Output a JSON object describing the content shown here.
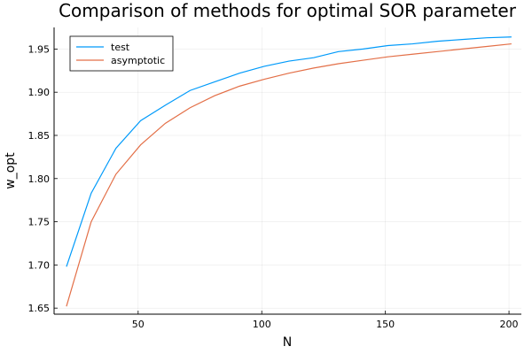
{
  "chart_data": {
    "type": "line",
    "title": "Comparison of methods for optimal SOR parameter",
    "xlabel": "N",
    "ylabel": "w_opt",
    "xlim": [
      16,
      205
    ],
    "ylim": [
      1.643,
      1.975
    ],
    "xticks": [
      50,
      100,
      150,
      200
    ],
    "yticks": [
      1.65,
      1.7,
      1.75,
      1.8,
      1.85,
      1.9,
      1.95
    ],
    "xtick_labels": [
      "50",
      "100",
      "150",
      "200"
    ],
    "ytick_labels": [
      "1.65",
      "1.70",
      "1.75",
      "1.80",
      "1.85",
      "1.90",
      "1.95"
    ],
    "grid": true,
    "legend_position": "top-left",
    "x": [
      21,
      31,
      41,
      51,
      61,
      71,
      81,
      91,
      101,
      111,
      121,
      131,
      141,
      151,
      161,
      171,
      181,
      191,
      201
    ],
    "series": [
      {
        "name": "test",
        "color": "#009AFA",
        "values": [
          1.698,
          1.783,
          1.835,
          1.867,
          1.885,
          1.902,
          1.912,
          1.922,
          1.93,
          1.936,
          1.94,
          1.947,
          1.95,
          1.954,
          1.956,
          1.959,
          1.961,
          1.963,
          1.964
        ]
      },
      {
        "name": "asymptotic",
        "color": "#E36F47",
        "values": [
          1.652,
          1.75,
          1.805,
          1.839,
          1.864,
          1.882,
          1.896,
          1.907,
          1.915,
          1.922,
          1.928,
          1.933,
          1.937,
          1.941,
          1.944,
          1.947,
          1.95,
          1.953,
          1.956
        ]
      }
    ]
  }
}
